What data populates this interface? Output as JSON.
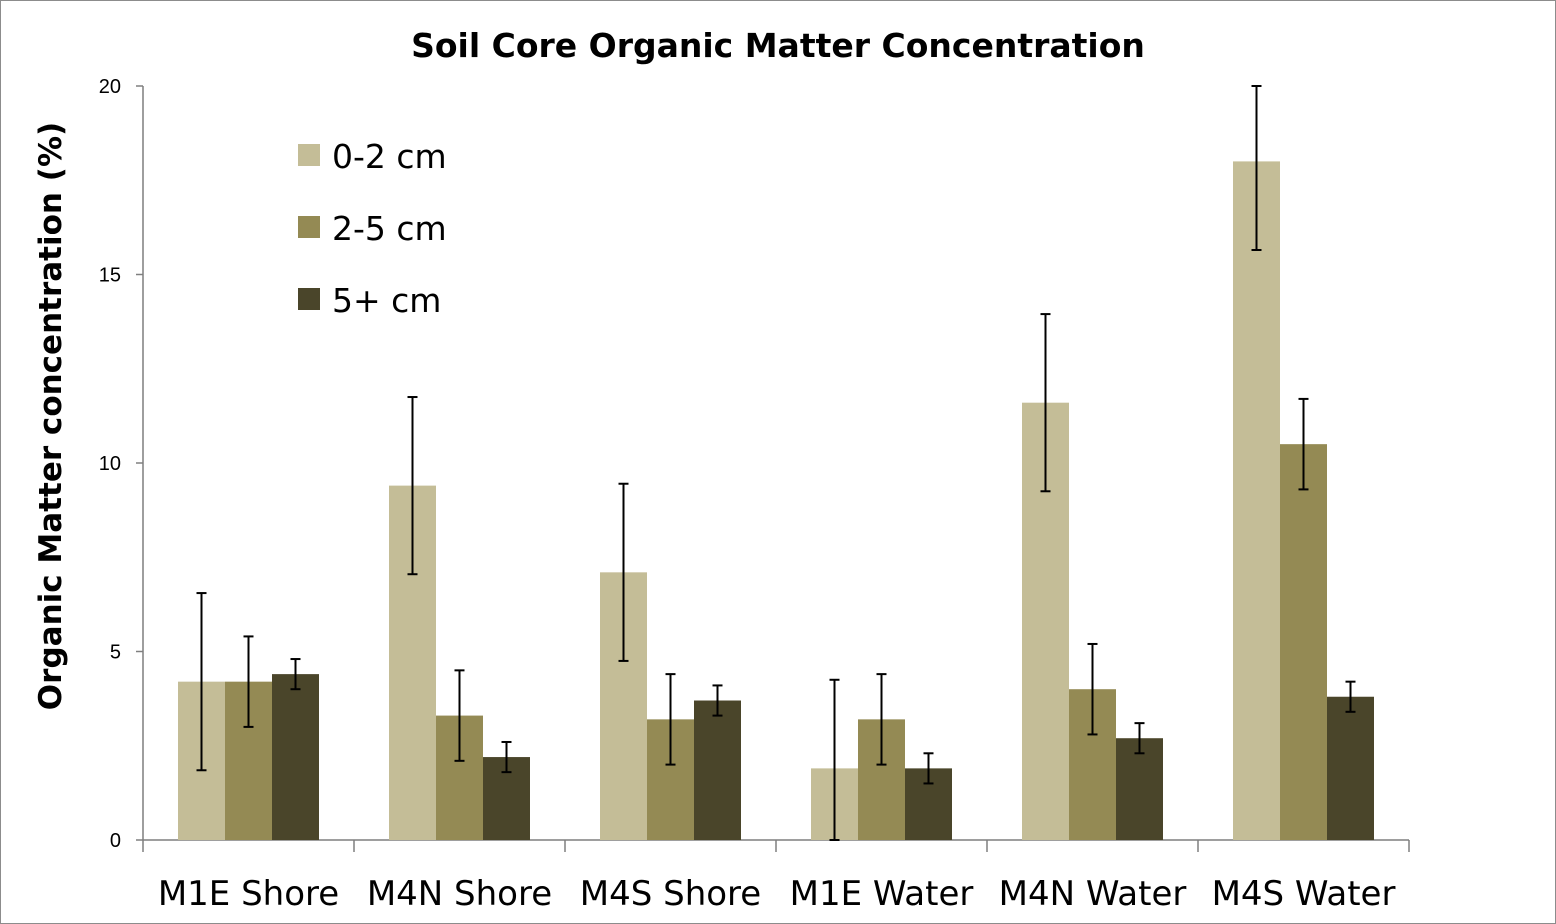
{
  "chart_data": {
    "type": "bar",
    "title": "Soil Core Organic Matter Concentration",
    "xlabel": "",
    "ylabel": "Organic Matter concentration (%)",
    "ylim": [
      0,
      20
    ],
    "yticks": [
      "0",
      "5",
      "10",
      "15",
      "20"
    ],
    "categories": [
      "M1E Shore",
      "M4N Shore",
      "M4S Shore",
      "M1E Water",
      "M4N Water",
      "M4S Water"
    ],
    "series": [
      {
        "name": "0-2 cm",
        "color": "#c4bd97",
        "values": [
          4.2,
          9.4,
          7.1,
          1.9,
          11.6,
          18.0
        ],
        "errors": [
          2.35,
          2.35,
          2.35,
          2.35,
          2.35,
          2.35
        ]
      },
      {
        "name": "2-5 cm",
        "color": "#948a54",
        "values": [
          4.2,
          3.3,
          3.2,
          3.2,
          4.0,
          10.5
        ],
        "errors": [
          1.2,
          1.2,
          1.2,
          1.2,
          1.2,
          1.2
        ]
      },
      {
        "name": "5+ cm",
        "color": "#4a452a",
        "values": [
          4.4,
          2.2,
          3.7,
          1.9,
          2.7,
          3.8
        ],
        "errors": [
          0.4,
          0.4,
          0.4,
          0.4,
          0.4,
          0.4
        ]
      }
    ],
    "grid": false,
    "legend": "top-left"
  }
}
